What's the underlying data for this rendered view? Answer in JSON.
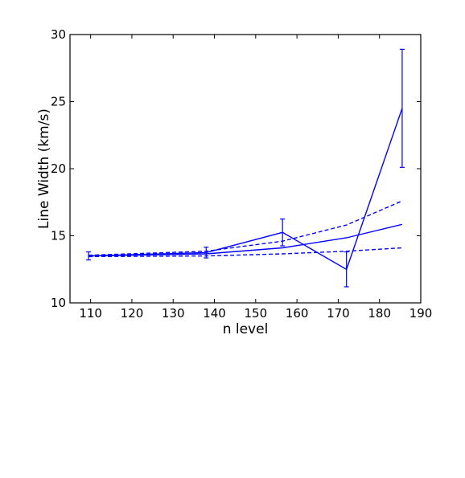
{
  "chart_data": {
    "type": "line",
    "title": "",
    "xlabel": "n level",
    "ylabel": "Line Width (km/s)",
    "xlim": [
      105,
      190
    ],
    "ylim": [
      10,
      30
    ],
    "xticks": [
      110,
      120,
      130,
      140,
      150,
      160,
      170,
      180,
      190
    ],
    "yticks": [
      10,
      15,
      20,
      25,
      30
    ],
    "grid": false,
    "legend": "none",
    "color": "#0000ff",
    "series": [
      {
        "style": "solid-with-errorbars",
        "x": [
          109.5,
          138.0,
          156.5,
          172.0,
          185.5
        ],
        "y": [
          13.5,
          13.75,
          15.25,
          12.5,
          24.5
        ],
        "yerr": [
          0.3,
          0.4,
          1.0,
          1.3,
          4.4
        ]
      },
      {
        "style": "solid",
        "x": [
          109.5,
          138.0,
          156.5,
          172.0,
          185.5
        ],
        "y": [
          13.5,
          13.65,
          14.1,
          14.85,
          15.85
        ]
      },
      {
        "style": "dashed",
        "x": [
          109.5,
          138.0,
          156.5,
          172.0,
          185.5
        ],
        "y": [
          13.55,
          13.85,
          14.6,
          15.8,
          17.6
        ]
      },
      {
        "style": "dashed",
        "x": [
          109.5,
          138.0,
          156.5,
          172.0,
          185.5
        ],
        "y": [
          13.45,
          13.5,
          13.65,
          13.85,
          14.1
        ]
      }
    ]
  }
}
